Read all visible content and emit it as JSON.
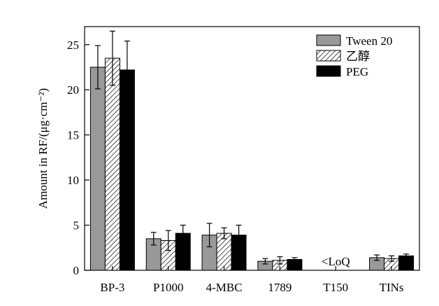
{
  "chart_data": {
    "type": "bar",
    "ylabel": "Amount in RF/(μg·cm⁻²)",
    "ylim": [
      0,
      27
    ],
    "yticks": [
      0,
      5,
      10,
      15,
      20,
      25
    ],
    "grid": false,
    "legend_position": "top-right",
    "categories": [
      "BP-3",
      "P1000",
      "4-MBC",
      "1789",
      "T150",
      "TINs"
    ],
    "series": [
      {
        "name": "Tween 20",
        "color": "#999999",
        "pattern": "solid",
        "values": [
          22.5,
          3.5,
          3.9,
          1.0,
          null,
          1.4
        ],
        "errors": [
          2.4,
          0.7,
          1.3,
          0.3,
          null,
          0.3
        ]
      },
      {
        "name": "乙醇",
        "color": "#ffffff",
        "pattern": "hatch",
        "values": [
          23.5,
          3.3,
          4.1,
          1.1,
          null,
          1.3
        ],
        "errors": [
          3.0,
          1.1,
          0.6,
          0.4,
          null,
          0.3
        ]
      },
      {
        "name": "PEG",
        "color": "#000000",
        "pattern": "solid",
        "values": [
          22.2,
          4.1,
          3.9,
          1.2,
          null,
          1.6
        ],
        "errors": [
          3.2,
          0.9,
          1.1,
          0.2,
          null,
          0.2
        ]
      }
    ],
    "annotations": [
      {
        "category": "T150",
        "text": "<LoQ"
      }
    ]
  }
}
